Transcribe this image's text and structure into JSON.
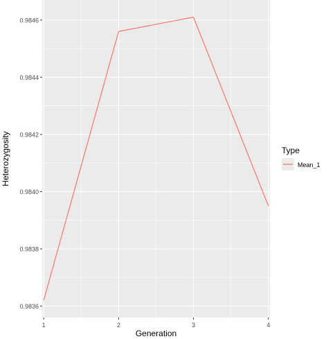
{
  "chart_data": {
    "type": "line",
    "title": "",
    "xlabel": "Generation",
    "ylabel": "Heterozygosity",
    "x": [
      1,
      2,
      3,
      4
    ],
    "x_ticks": [
      1,
      2,
      3,
      4
    ],
    "x_tick_labels": [
      "1",
      "2",
      "3",
      "4"
    ],
    "xlim": [
      0.98,
      4.02
    ],
    "y_ticks": [
      0.9836,
      0.9838,
      0.984,
      0.9842,
      0.9844,
      0.9846
    ],
    "y_tick_labels": [
      "0.9836",
      "0.9838",
      "0.9840",
      "0.9842",
      "0.9844",
      "0.9846"
    ],
    "ylim": [
      0.98356,
      0.98467
    ],
    "grid": true,
    "legend_position": "right",
    "legend_title": "Type",
    "series": [
      {
        "name": "Mean_1",
        "color": "#F8766D",
        "values": [
          0.98362,
          0.98456,
          0.98461,
          0.98395
        ]
      }
    ],
    "panel_background": "#EBEBEB",
    "grid_color": "#FFFFFF"
  }
}
